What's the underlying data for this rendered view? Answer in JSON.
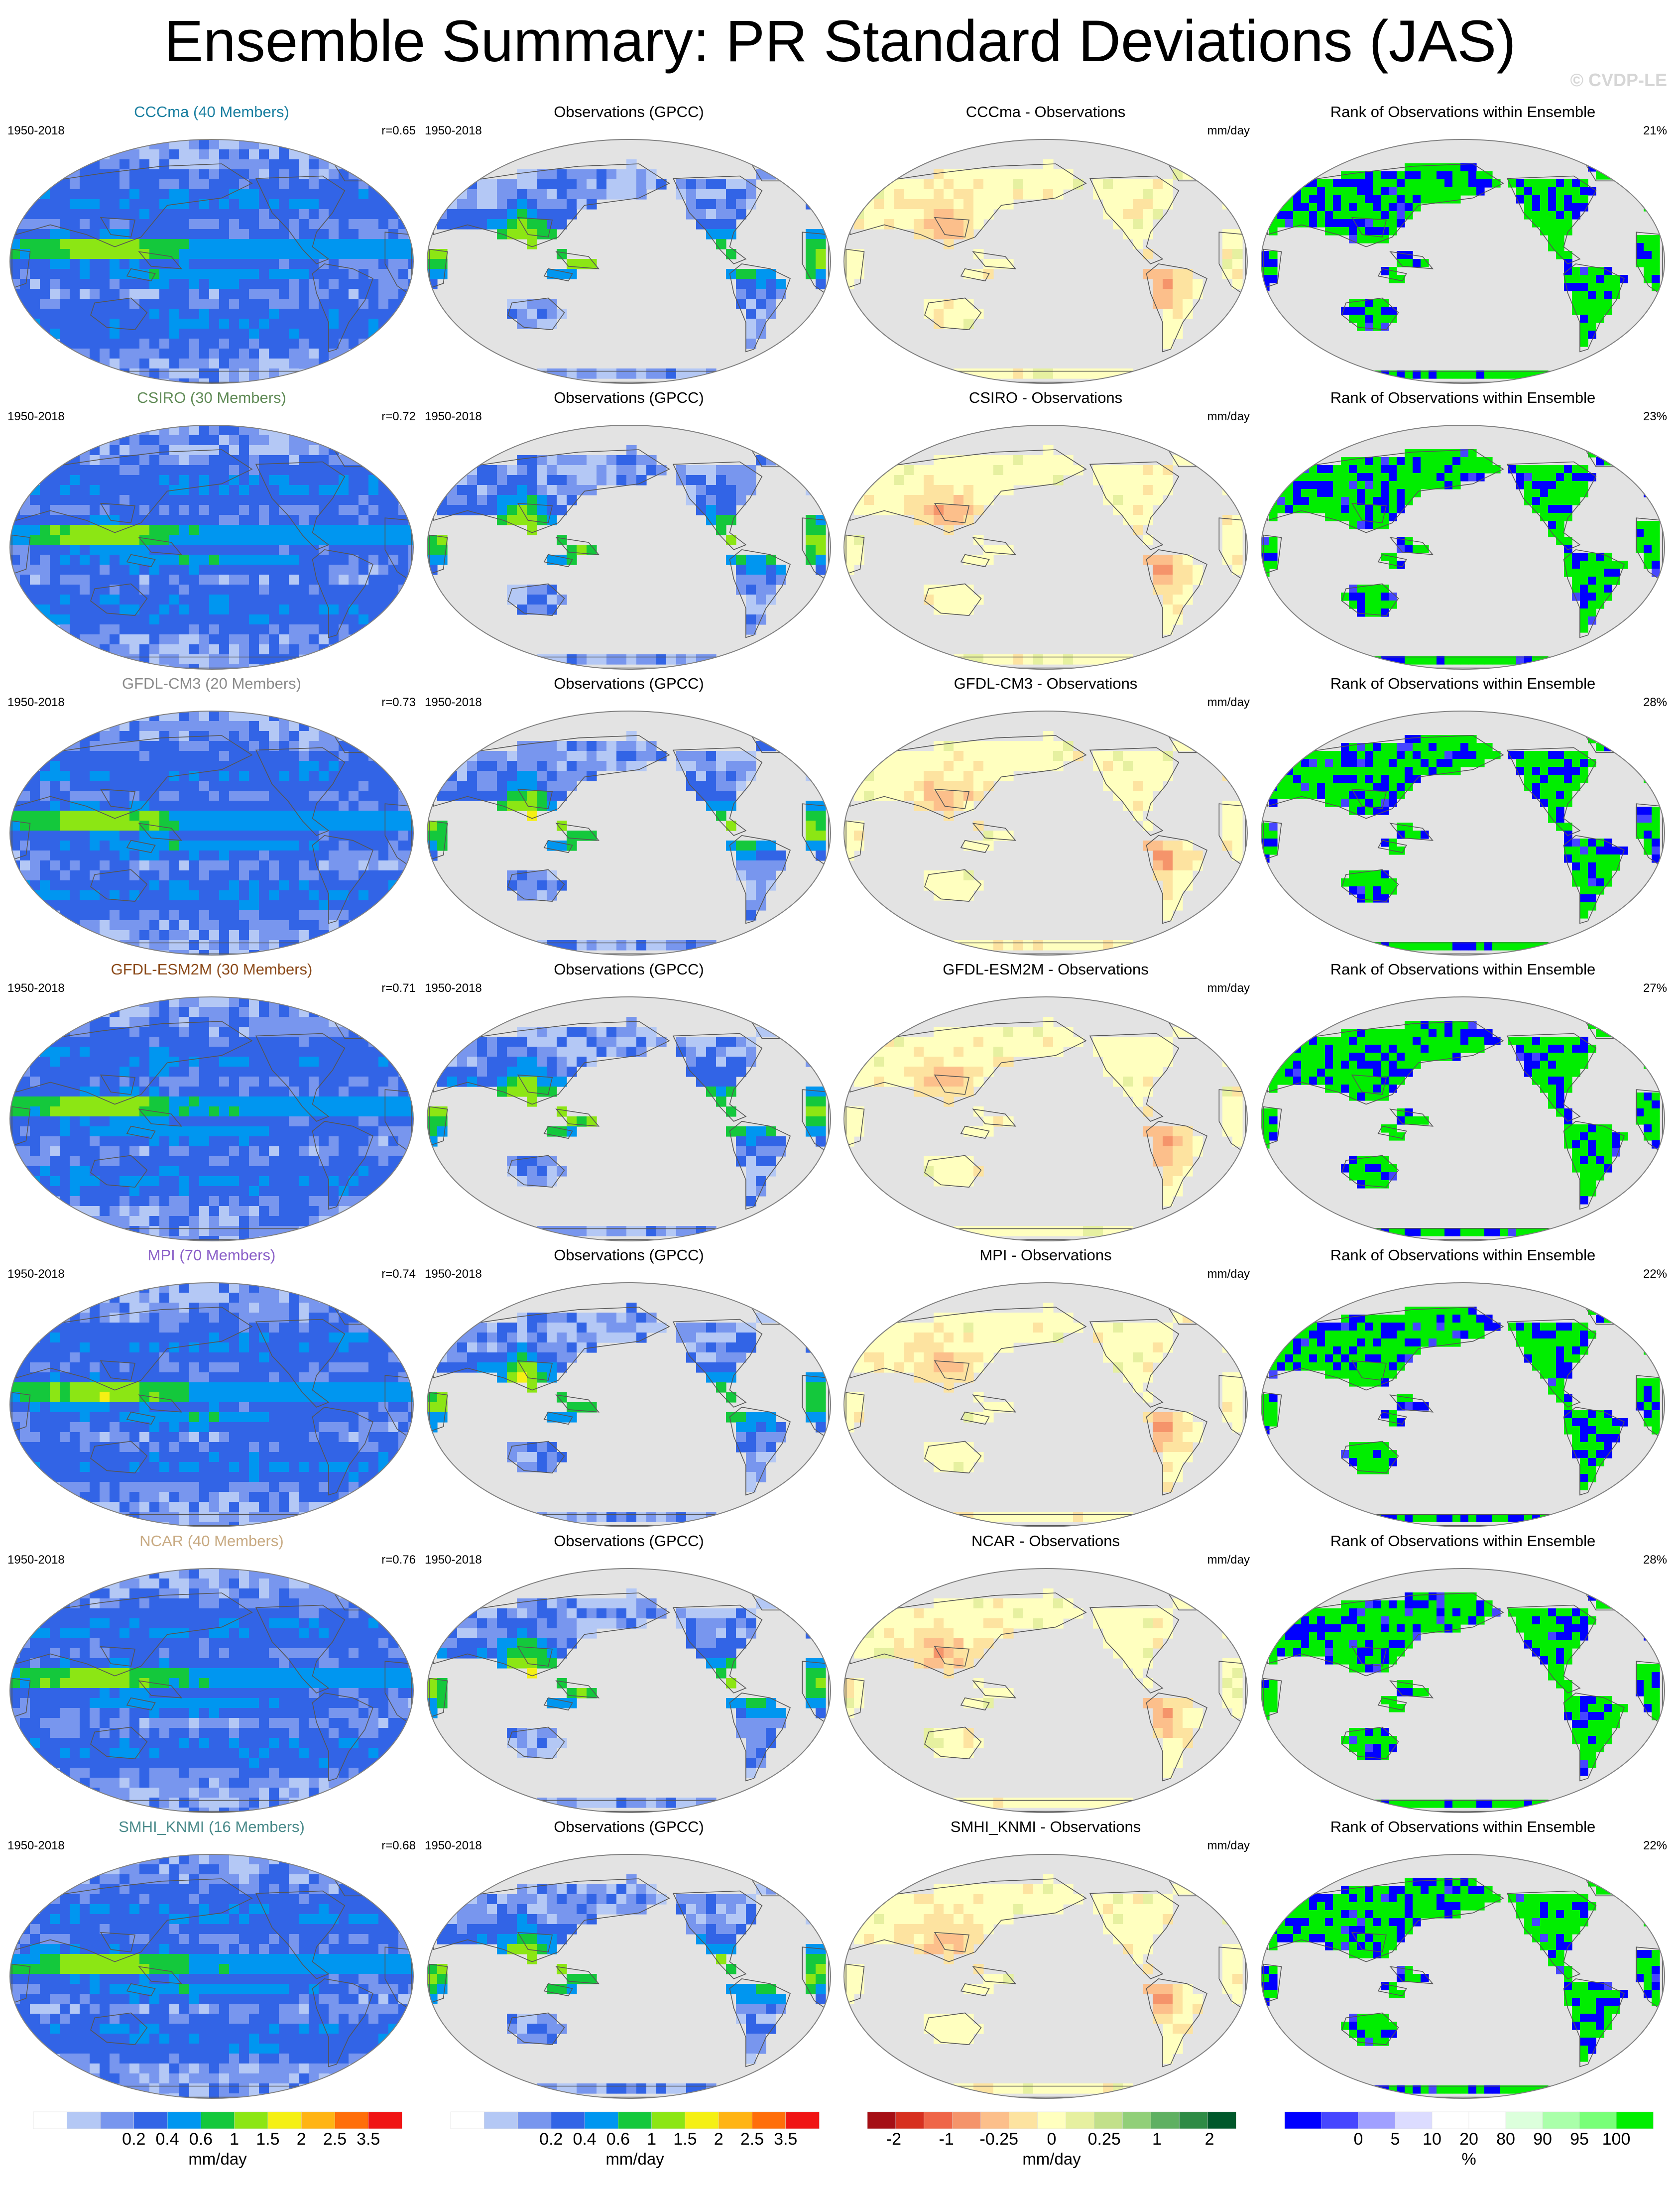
{
  "title": "Ensemble Summary: PR Standard Deviations (JAS)",
  "watermark": "© CVDP-LE",
  "colors": {
    "ocean": "#e3e3e3",
    "pr_scale": [
      "#ffffff",
      "#b4c8f5",
      "#7896ee",
      "#3264e6",
      "#0096f0",
      "#14c83c",
      "#8ce614",
      "#f5f014",
      "#ffb414",
      "#ff6e0a",
      "#f01414"
    ],
    "diff_scale": [
      "#a50f15",
      "#d7301f",
      "#ef6548",
      "#f5946b",
      "#fcbf8b",
      "#fde3a0",
      "#ffffbf",
      "#e6f0a0",
      "#c2e08a",
      "#91cf79",
      "#5fb062",
      "#2e8b45",
      "#00582b"
    ],
    "rank_scale": [
      "#0000ff",
      "#4646ff",
      "#a0a0ff",
      "#dcdcff",
      "#ffffff",
      "#ffffff",
      "#dcffdc",
      "#aaffaa",
      "#78ff78",
      "#00ee00"
    ]
  },
  "chart_data": [
    {
      "row": 1,
      "type": "map",
      "model_title": "CCCma (40 Members)",
      "model_color": "#1a7fa0",
      "period": "1950-2018",
      "r": "r=0.65",
      "obs_title": "Observations (GPCC)",
      "diff_title": "CCCma - Observations",
      "diff_unit": "mm/day",
      "rank_title": "Rank of Observations within Ensemble",
      "rank_pct": "21%"
    },
    {
      "row": 2,
      "type": "map",
      "model_title": "CSIRO (30 Members)",
      "model_color": "#5f8a55",
      "period": "1950-2018",
      "r": "r=0.72",
      "obs_title": "Observations (GPCC)",
      "diff_title": "CSIRO - Observations",
      "diff_unit": "mm/day",
      "rank_title": "Rank of Observations within Ensemble",
      "rank_pct": "23%"
    },
    {
      "row": 3,
      "type": "map",
      "model_title": "GFDL-CM3 (20 Members)",
      "model_color": "#8a8a8a",
      "period": "1950-2018",
      "r": "r=0.73",
      "obs_title": "Observations (GPCC)",
      "diff_title": "GFDL-CM3 - Observations",
      "diff_unit": "mm/day",
      "rank_title": "Rank of Observations within Ensemble",
      "rank_pct": "28%"
    },
    {
      "row": 4,
      "type": "map",
      "model_title": "GFDL-ESM2M (30 Members)",
      "model_color": "#8b4a1a",
      "period": "1950-2018",
      "r": "r=0.71",
      "obs_title": "Observations (GPCC)",
      "diff_title": "GFDL-ESM2M - Observations",
      "diff_unit": "mm/day",
      "rank_title": "Rank of Observations within Ensemble",
      "rank_pct": "27%"
    },
    {
      "row": 5,
      "type": "map",
      "model_title": "MPI (70 Members)",
      "model_color": "#8a5fc8",
      "period": "1950-2018",
      "r": "r=0.74",
      "obs_title": "Observations (GPCC)",
      "diff_title": "MPI - Observations",
      "diff_unit": "mm/day",
      "rank_title": "Rank of Observations within Ensemble",
      "rank_pct": "22%"
    },
    {
      "row": 6,
      "type": "map",
      "model_title": "NCAR (40 Members)",
      "model_color": "#c8aa82",
      "period": "1950-2018",
      "r": "r=0.76",
      "obs_title": "Observations (GPCC)",
      "diff_title": "NCAR - Observations",
      "diff_unit": "mm/day",
      "rank_title": "Rank of Observations within Ensemble",
      "rank_pct": "28%"
    },
    {
      "row": 7,
      "type": "map",
      "model_title": "SMHI_KNMI (16 Members)",
      "model_color": "#4a8a8a",
      "period": "1950-2018",
      "r": "r=0.68",
      "obs_title": "Observations (GPCC)",
      "diff_title": "SMHI_KNMI - Observations",
      "diff_unit": "mm/day",
      "rank_title": "Rank of Observations within Ensemble",
      "rank_pct": "22%"
    }
  ],
  "colorbars": [
    {
      "kind": "pr",
      "labels": [
        "0.2",
        "0.4",
        "0.6",
        "1",
        "1.5",
        "2",
        "2.5",
        "3.5"
      ],
      "unit": "mm/day"
    },
    {
      "kind": "pr",
      "labels": [
        "0.2",
        "0.4",
        "0.6",
        "1",
        "1.5",
        "2",
        "2.5",
        "3.5"
      ],
      "unit": "mm/day"
    },
    {
      "kind": "diff",
      "labels": [
        "-2",
        "-1",
        "-0.25",
        "0",
        "0.25",
        "1",
        "2"
      ],
      "unit": "mm/day"
    },
    {
      "kind": "rank",
      "labels": [
        "0",
        "5",
        "10",
        "20",
        "80",
        "90",
        "95",
        "100"
      ],
      "unit": "%"
    }
  ]
}
